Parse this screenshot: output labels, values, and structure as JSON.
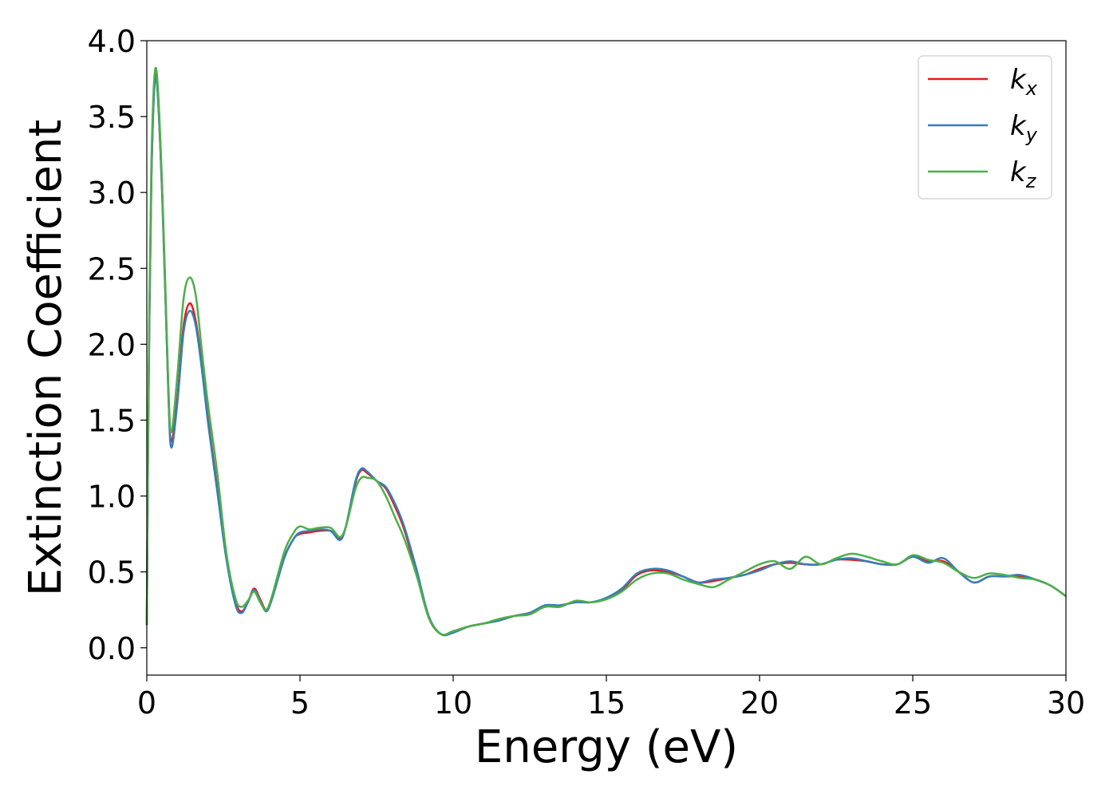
{
  "chart_data": {
    "type": "line",
    "title": "",
    "xlabel": "Energy (eV)",
    "ylabel": "Extinction Coefficient",
    "xlim": [
      0,
      30
    ],
    "ylim": [
      -0.18,
      4.0
    ],
    "xticks": [
      "0",
      "5",
      "10",
      "15",
      "20",
      "25",
      "30"
    ],
    "yticks": [
      "0.0",
      "0.5",
      "1.0",
      "1.5",
      "2.0",
      "2.5",
      "3.0",
      "3.5",
      "4.0"
    ],
    "grid": false,
    "legend_position": "top-right",
    "series": [
      {
        "name": "k",
        "subscript": "x",
        "color": "#e41a1c",
        "x": [
          0,
          0.05,
          0.15,
          0.3,
          0.5,
          0.7,
          0.8,
          1.0,
          1.2,
          1.4,
          1.6,
          1.8,
          2.0,
          2.3,
          2.6,
          2.9,
          3.1,
          3.3,
          3.5,
          3.7,
          3.9,
          4.1,
          4.5,
          4.8,
          5.0,
          5.3,
          5.6,
          6.0,
          6.3,
          6.5,
          6.8,
          7.0,
          7.2,
          7.5,
          7.8,
          8.1,
          8.4,
          8.8,
          9.2,
          9.6,
          10.0,
          10.5,
          11.0,
          11.5,
          12.0,
          12.5,
          13.0,
          13.5,
          14.0,
          14.5,
          15.0,
          15.5,
          16.0,
          16.5,
          17.0,
          17.5,
          18.0,
          18.5,
          19.0,
          19.5,
          20.0,
          20.5,
          21.0,
          21.5,
          22.0,
          22.5,
          23.0,
          23.5,
          24.0,
          24.5,
          25.0,
          25.5,
          26.0,
          26.5,
          27.0,
          27.5,
          28.0,
          28.5,
          29.0,
          29.5,
          30.0
        ],
        "y": [
          0.15,
          1.5,
          3.1,
          3.78,
          3.0,
          1.7,
          1.36,
          1.65,
          2.12,
          2.27,
          2.15,
          1.85,
          1.5,
          1.05,
          0.6,
          0.3,
          0.24,
          0.3,
          0.39,
          0.32,
          0.25,
          0.34,
          0.6,
          0.72,
          0.75,
          0.76,
          0.77,
          0.77,
          0.72,
          0.8,
          1.08,
          1.17,
          1.15,
          1.1,
          1.05,
          0.93,
          0.78,
          0.5,
          0.2,
          0.09,
          0.1,
          0.14,
          0.16,
          0.18,
          0.21,
          0.23,
          0.27,
          0.28,
          0.3,
          0.3,
          0.32,
          0.38,
          0.48,
          0.51,
          0.5,
          0.47,
          0.43,
          0.44,
          0.46,
          0.48,
          0.52,
          0.55,
          0.56,
          0.55,
          0.55,
          0.58,
          0.58,
          0.57,
          0.55,
          0.55,
          0.6,
          0.57,
          0.57,
          0.5,
          0.43,
          0.47,
          0.47,
          0.47,
          0.45,
          0.41,
          0.34
        ]
      },
      {
        "name": "k",
        "subscript": "y",
        "color": "#377eb8",
        "x": [
          0,
          0.05,
          0.15,
          0.3,
          0.5,
          0.7,
          0.8,
          1.0,
          1.2,
          1.4,
          1.6,
          1.8,
          2.0,
          2.3,
          2.6,
          2.9,
          3.1,
          3.3,
          3.5,
          3.7,
          3.9,
          4.1,
          4.5,
          4.8,
          5.0,
          5.3,
          5.6,
          6.0,
          6.3,
          6.5,
          6.8,
          7.0,
          7.2,
          7.5,
          7.8,
          8.1,
          8.4,
          8.8,
          9.2,
          9.6,
          10.0,
          10.5,
          11.0,
          11.5,
          12.0,
          12.5,
          13.0,
          13.5,
          14.0,
          14.5,
          15.0,
          15.5,
          16.0,
          16.5,
          17.0,
          17.5,
          18.0,
          18.5,
          19.0,
          19.5,
          20.0,
          20.5,
          21.0,
          21.5,
          22.0,
          22.5,
          23.0,
          23.5,
          24.0,
          24.5,
          25.0,
          25.5,
          26.0,
          26.5,
          27.0,
          27.5,
          28.0,
          28.5,
          29.0,
          29.5,
          30.0
        ],
        "y": [
          0.15,
          1.5,
          3.1,
          3.76,
          3.0,
          1.7,
          1.32,
          1.62,
          2.08,
          2.22,
          2.12,
          1.83,
          1.48,
          1.03,
          0.58,
          0.28,
          0.23,
          0.3,
          0.38,
          0.31,
          0.24,
          0.33,
          0.6,
          0.72,
          0.76,
          0.77,
          0.78,
          0.77,
          0.71,
          0.8,
          1.09,
          1.18,
          1.16,
          1.1,
          1.06,
          0.95,
          0.8,
          0.52,
          0.21,
          0.09,
          0.1,
          0.14,
          0.16,
          0.18,
          0.21,
          0.23,
          0.28,
          0.28,
          0.3,
          0.3,
          0.33,
          0.39,
          0.49,
          0.52,
          0.51,
          0.47,
          0.43,
          0.45,
          0.46,
          0.48,
          0.51,
          0.55,
          0.57,
          0.55,
          0.55,
          0.58,
          0.59,
          0.57,
          0.55,
          0.55,
          0.6,
          0.56,
          0.59,
          0.5,
          0.43,
          0.47,
          0.47,
          0.48,
          0.45,
          0.41,
          0.34
        ]
      },
      {
        "name": "k",
        "subscript": "z",
        "color": "#4daf4a",
        "x": [
          0,
          0.05,
          0.15,
          0.3,
          0.5,
          0.7,
          0.8,
          1.0,
          1.2,
          1.4,
          1.6,
          1.8,
          2.0,
          2.3,
          2.6,
          2.9,
          3.1,
          3.3,
          3.5,
          3.7,
          3.9,
          4.1,
          4.5,
          4.8,
          5.0,
          5.3,
          5.6,
          6.0,
          6.3,
          6.5,
          6.8,
          7.0,
          7.2,
          7.5,
          7.8,
          8.1,
          8.4,
          8.8,
          9.2,
          9.6,
          10.0,
          10.5,
          11.0,
          11.5,
          12.0,
          12.5,
          13.0,
          13.5,
          14.0,
          14.5,
          15.0,
          15.5,
          16.0,
          16.5,
          17.0,
          17.5,
          18.0,
          18.5,
          19.0,
          19.5,
          20.0,
          20.5,
          21.0,
          21.5,
          22.0,
          22.5,
          23.0,
          23.5,
          24.0,
          24.5,
          25.0,
          25.5,
          26.0,
          26.5,
          27.0,
          27.5,
          28.0,
          28.5,
          29.0,
          29.5,
          30.0
        ],
        "y": [
          0.15,
          1.6,
          3.2,
          3.82,
          3.05,
          1.75,
          1.42,
          1.8,
          2.3,
          2.44,
          2.32,
          1.95,
          1.6,
          1.15,
          0.62,
          0.32,
          0.27,
          0.31,
          0.37,
          0.3,
          0.25,
          0.35,
          0.64,
          0.76,
          0.8,
          0.78,
          0.79,
          0.79,
          0.73,
          0.8,
          1.04,
          1.12,
          1.12,
          1.1,
          1.0,
          0.86,
          0.72,
          0.48,
          0.2,
          0.09,
          0.11,
          0.14,
          0.16,
          0.19,
          0.21,
          0.22,
          0.27,
          0.27,
          0.31,
          0.3,
          0.32,
          0.37,
          0.45,
          0.49,
          0.49,
          0.45,
          0.42,
          0.4,
          0.45,
          0.5,
          0.55,
          0.57,
          0.52,
          0.6,
          0.55,
          0.59,
          0.62,
          0.6,
          0.57,
          0.55,
          0.61,
          0.58,
          0.56,
          0.5,
          0.46,
          0.49,
          0.48,
          0.46,
          0.45,
          0.41,
          0.34
        ]
      }
    ]
  }
}
